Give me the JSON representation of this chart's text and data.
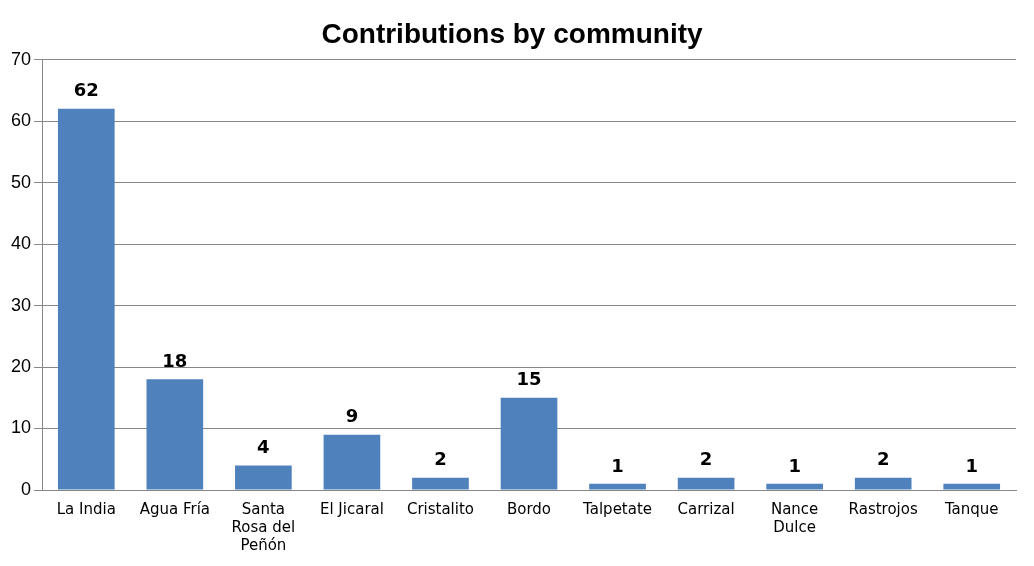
{
  "chart_data": {
    "type": "bar",
    "title": "Contributions by community",
    "categories": [
      "La India",
      "Agua Fría",
      "Santa Rosa del Peñón",
      "El Jicaral",
      "Cristalito",
      "Bordo",
      "Talpetate",
      "Carrizal",
      "Nance Dulce",
      "Rastrojos",
      "Tanque"
    ],
    "values": [
      62,
      18,
      4,
      9,
      2,
      15,
      1,
      2,
      1,
      2,
      1
    ],
    "color": "#4f81bd",
    "ylim": [
      0,
      70
    ],
    "yticks": [
      0,
      10,
      20,
      30,
      40,
      50,
      60,
      70
    ],
    "grid": "y",
    "data_labels": true
  }
}
